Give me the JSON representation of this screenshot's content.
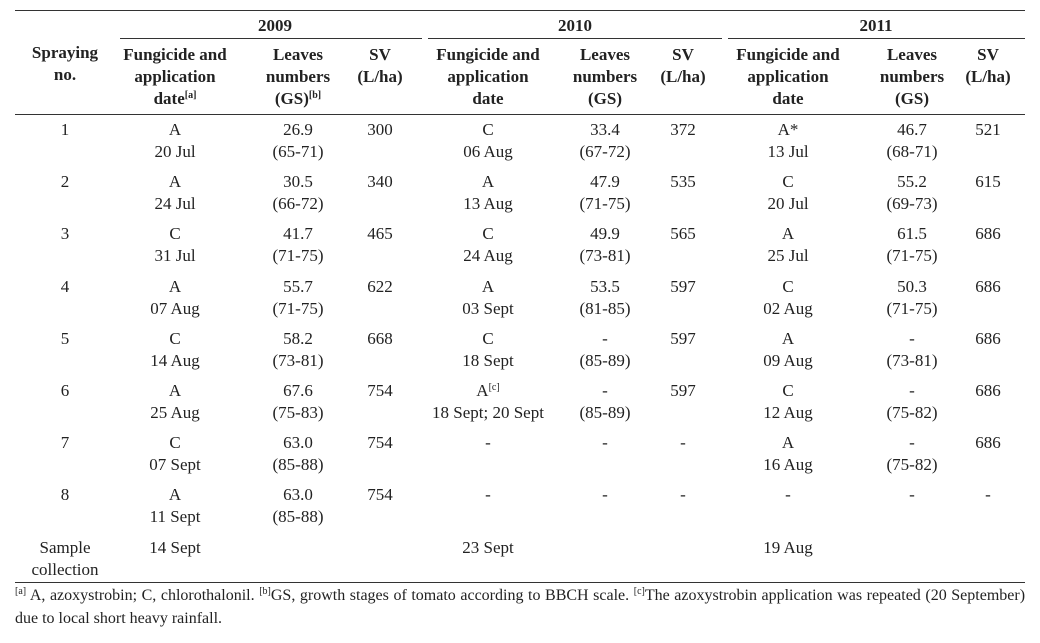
{
  "table": {
    "years": [
      "2009",
      "2010",
      "2011"
    ],
    "header": {
      "corner": [
        "Spraying",
        "no."
      ],
      "columns": [
        [
          "Fungicide and",
          "application",
          {
            "text": "date",
            "sup": "[a]"
          }
        ],
        [
          "Leaves",
          "numbers",
          {
            "text": "(GS)",
            "sup": "[b]"
          }
        ],
        [
          "SV",
          "(L/ha)"
        ],
        [
          "Fungicide and",
          "application",
          "date"
        ],
        [
          "Leaves",
          "numbers",
          "(GS)"
        ],
        [
          "SV",
          "(L/ha)"
        ],
        [
          "Fungicide and",
          "application",
          "date"
        ],
        [
          "Leaves",
          "numbers",
          "(GS)"
        ],
        [
          "SV",
          "(L/ha)"
        ]
      ]
    },
    "rows": [
      {
        "label": [
          "1"
        ],
        "cells": [
          [
            "A",
            "20 Jul"
          ],
          [
            "26.9",
            "(65-71)"
          ],
          [
            "300"
          ],
          [
            "C",
            "06 Aug"
          ],
          [
            "33.4",
            "(67-72)"
          ],
          [
            "372"
          ],
          [
            "A*",
            "13 Jul"
          ],
          [
            "46.7",
            "(68-71)"
          ],
          [
            "521"
          ]
        ]
      },
      {
        "label": [
          "2"
        ],
        "cells": [
          [
            "A",
            "24 Jul"
          ],
          [
            "30.5",
            "(66-72)"
          ],
          [
            "340"
          ],
          [
            "A",
            "13 Aug"
          ],
          [
            "47.9",
            "(71-75)"
          ],
          [
            "535"
          ],
          [
            "C",
            "20 Jul"
          ],
          [
            "55.2",
            "(69-73)"
          ],
          [
            "615"
          ]
        ]
      },
      {
        "label": [
          "3"
        ],
        "cells": [
          [
            "C",
            "31 Jul"
          ],
          [
            "41.7",
            "(71-75)"
          ],
          [
            "465"
          ],
          [
            "C",
            "24 Aug"
          ],
          [
            "49.9",
            "(73-81)"
          ],
          [
            "565"
          ],
          [
            "A",
            "25 Jul"
          ],
          [
            "61.5",
            "(71-75)"
          ],
          [
            "686"
          ]
        ]
      },
      {
        "label": [
          "4"
        ],
        "cells": [
          [
            "A",
            "07 Aug"
          ],
          [
            "55.7",
            "(71-75)"
          ],
          [
            "622"
          ],
          [
            "A",
            "03 Sept"
          ],
          [
            "53.5",
            "(81-85)"
          ],
          [
            "597"
          ],
          [
            "C",
            "02 Aug"
          ],
          [
            "50.3",
            "(71-75)"
          ],
          [
            "686"
          ]
        ]
      },
      {
        "label": [
          "5"
        ],
        "cells": [
          [
            "C",
            "14 Aug"
          ],
          [
            "58.2",
            "(73-81)"
          ],
          [
            "668"
          ],
          [
            "C",
            "18 Sept"
          ],
          [
            "-",
            "(85-89)"
          ],
          [
            "597"
          ],
          [
            "A",
            "09 Aug"
          ],
          [
            "-",
            "(73-81)"
          ],
          [
            "686"
          ]
        ]
      },
      {
        "label": [
          "6"
        ],
        "cells": [
          [
            "A",
            "25 Aug"
          ],
          [
            "67.6",
            "(75-83)"
          ],
          [
            "754"
          ],
          [
            {
              "text": "A",
              "sup": "[c]"
            },
            "18 Sept; 20 Sept"
          ],
          [
            "-",
            "(85-89)"
          ],
          [
            "597"
          ],
          [
            "C",
            "12 Aug"
          ],
          [
            "-",
            "(75-82)"
          ],
          [
            "686"
          ]
        ]
      },
      {
        "label": [
          "7"
        ],
        "cells": [
          [
            "C",
            "07 Sept"
          ],
          [
            "63.0",
            "(85-88)"
          ],
          [
            "754"
          ],
          [
            "-"
          ],
          [
            "-"
          ],
          [
            "-"
          ],
          [
            "A",
            "16 Aug"
          ],
          [
            "-",
            "(75-82)"
          ],
          [
            "686"
          ]
        ]
      },
      {
        "label": [
          "8"
        ],
        "cells": [
          [
            "A",
            "11 Sept"
          ],
          [
            "63.0",
            "(85-88)"
          ],
          [
            "754"
          ],
          [
            "-"
          ],
          [
            "-"
          ],
          [
            "-"
          ],
          [
            "-"
          ],
          [
            "-"
          ],
          [
            "-"
          ]
        ]
      },
      {
        "label": [
          "Sample",
          "collection"
        ],
        "cells": [
          [
            "14 Sept"
          ],
          null,
          null,
          [
            "23 Sept"
          ],
          null,
          null,
          [
            "19 Aug"
          ],
          null,
          null
        ]
      }
    ],
    "footnotes": [
      {
        "mark": "[a]",
        "text": "A, azoxystrobin; C, chlorothalonil."
      },
      {
        "mark": "[b]",
        "text": "GS, growth stages of tomato according to BBCH scale."
      },
      {
        "mark": "[c]",
        "text": "The azoxystrobin application was repeated (20 September) due to local short heavy rainfall."
      }
    ]
  }
}
